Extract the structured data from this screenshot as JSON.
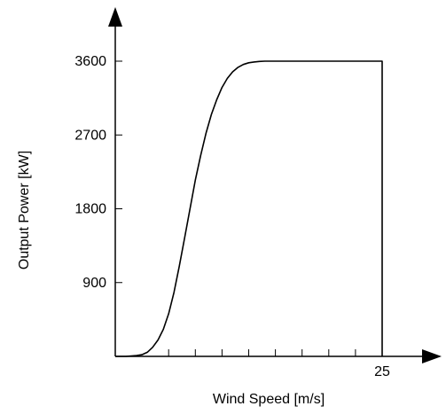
{
  "chart_data": {
    "type": "line",
    "title": "",
    "xlabel": "Wind Speed [m/s]",
    "ylabel": "Output Power [kW]",
    "xlim": [
      0,
      25
    ],
    "ylim": [
      0,
      3600
    ],
    "x_tick_labels": [
      {
        "value": 25,
        "label": "25"
      }
    ],
    "x_minor_ticks": [
      5,
      7.5,
      10,
      12.5,
      15,
      17.5,
      20,
      22.5
    ],
    "y_ticks": [
      900,
      1800,
      2700,
      3600
    ],
    "y_tick_labels": [
      "900",
      "1800",
      "2700",
      "3600"
    ],
    "grid": false,
    "legend": "none",
    "colors": {
      "line": "#000000",
      "axis": "#000000"
    },
    "series": [
      {
        "x": [
          0,
          1,
          2,
          2.5,
          3,
          3.5,
          4,
          4.5,
          5,
          5.5,
          6,
          6.5,
          7,
          7.5,
          8,
          8.5,
          9,
          9.5,
          10,
          10.5,
          11,
          11.5,
          12,
          12.5,
          13,
          13.5,
          14,
          14.5,
          15,
          15.5,
          16,
          17,
          25,
          25
        ],
        "y": [
          0,
          0,
          10,
          20,
          50,
          110,
          200,
          330,
          520,
          780,
          1100,
          1450,
          1800,
          2150,
          2450,
          2720,
          2950,
          3130,
          3280,
          3390,
          3470,
          3525,
          3560,
          3580,
          3590,
          3597,
          3600,
          3600,
          3600,
          3600,
          3600,
          3600,
          3600,
          0
        ]
      }
    ]
  }
}
